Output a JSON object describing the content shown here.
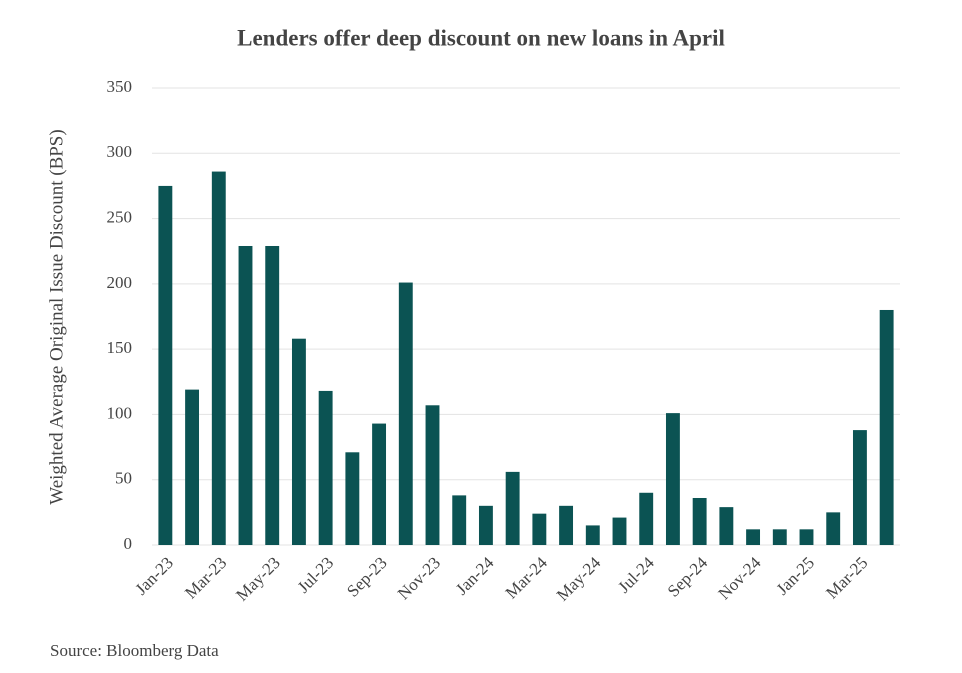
{
  "chart_data": {
    "type": "bar",
    "title": "Lenders offer deep discount on new loans in April",
    "y_label": "Weighted Average Original Issue Discount (BPS)",
    "source": "Source: Bloomberg Data",
    "categories": [
      "Jan-23",
      null,
      "Mar-23",
      null,
      "May-23",
      null,
      "Jul-23",
      null,
      "Sep-23",
      null,
      "Nov-23",
      null,
      "Jan-24",
      null,
      "Mar-24",
      null,
      "May-24",
      null,
      "Jul-24",
      null,
      "Sep-24",
      null,
      "Nov-24",
      null,
      "Jan-25",
      null,
      "Mar-25",
      null
    ],
    "values": [
      275,
      119,
      286,
      229,
      229,
      158,
      118,
      71,
      93,
      201,
      107,
      38,
      30,
      56,
      24,
      30,
      15,
      21,
      40,
      101,
      36,
      29,
      12,
      12,
      12,
      25,
      88,
      180
    ],
    "color": "#0b5353",
    "ylim": [
      0,
      350
    ],
    "yticks": [
      0,
      50,
      100,
      150,
      200,
      250,
      300,
      350
    ],
    "grid": true
  }
}
